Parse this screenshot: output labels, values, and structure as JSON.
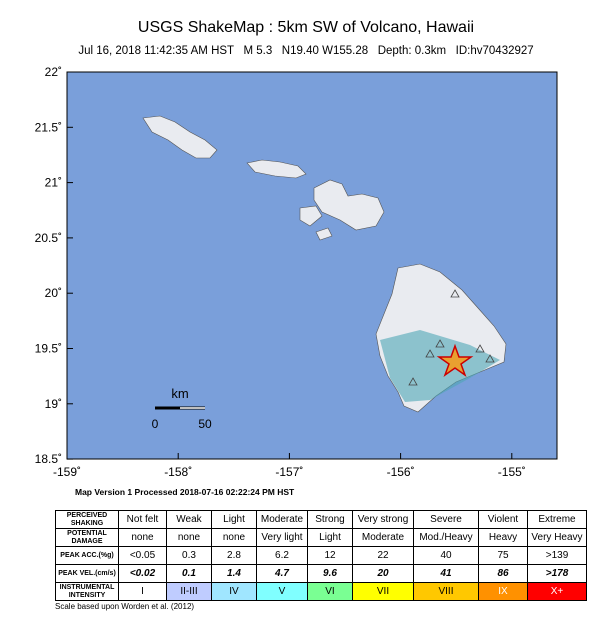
{
  "header": {
    "title": "USGS ShakeMap : 5km SW of Volcano, Hawaii",
    "subtitle": "Jul 16, 2018 11:42:35 AM HST   M 5.3   N19.40 W155.28   Depth: 0.3km   ID:hv70432927"
  },
  "map": {
    "lat_labels": [
      "22˚",
      "21.5˚",
      "21˚",
      "20.5˚",
      "20˚",
      "19.5˚",
      "19˚",
      "18.5˚"
    ],
    "lon_labels": [
      "-159˚",
      "-158˚",
      "-157˚",
      "-156˚",
      "-155˚"
    ],
    "scale_bar": {
      "unit": "km",
      "start": "0",
      "end": "50"
    },
    "footer": "Map Version 1 Processed 2018-07-16 02:22:24 PM HST"
  },
  "table": {
    "rows": [
      [
        "PERCEIVED SHAKING",
        "Not felt",
        "Weak",
        "Light",
        "Moderate",
        "Strong",
        "Very strong",
        "Severe",
        "Violent",
        "Extreme"
      ],
      [
        "POTENTIAL DAMAGE",
        "none",
        "none",
        "none",
        "Very light",
        "Light",
        "Moderate",
        "Mod./Heavy",
        "Heavy",
        "Very Heavy"
      ],
      [
        "PEAK ACC.(%g)",
        "<0.05",
        "0.3",
        "2.8",
        "6.2",
        "12",
        "22",
        "40",
        "75",
        ">139"
      ],
      [
        "PEAK VEL.(cm/s)",
        "<0.02",
        "0.1",
        "1.4",
        "4.7",
        "9.6",
        "20",
        "41",
        "86",
        ">178"
      ],
      [
        "INSTRUMENTAL INTENSITY",
        "I",
        "II-III",
        "IV",
        "V",
        "VI",
        "VII",
        "VIII",
        "IX",
        "X+"
      ]
    ],
    "note": "Scale based upon Worden et al. (2012)"
  }
}
